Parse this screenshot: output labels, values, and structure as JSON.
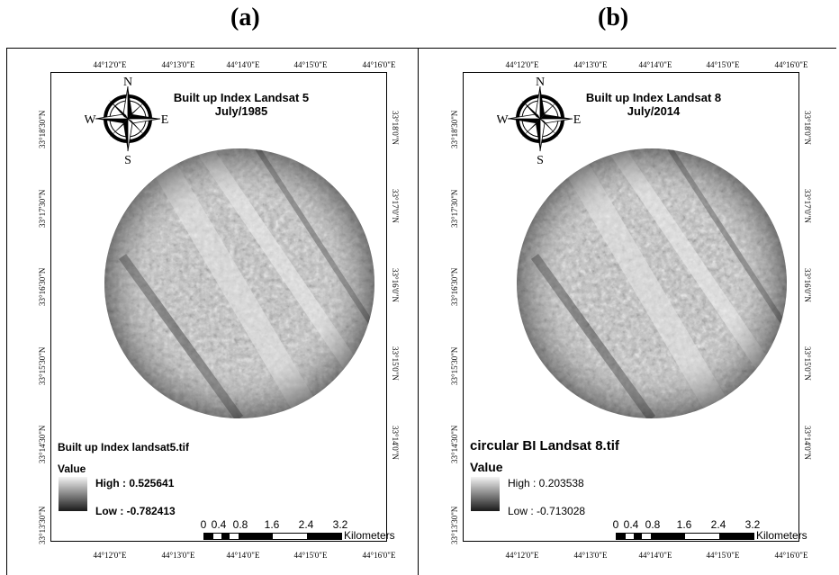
{
  "panels": [
    {
      "label": "(a)",
      "title_line1": "Built up Index Landsat 5",
      "title_line2": "July/1985",
      "legend_title": "Built up Index landsat5.tif",
      "legend_value_label": "Value",
      "legend_high": "High : 0.525641",
      "legend_low": "Low : -0.782413",
      "scale_labels": [
        "0",
        "0.4",
        "0.8",
        "1.6",
        "2.4",
        "3.2"
      ],
      "scale_unit": "Kilometers",
      "lon_ticks": [
        "44°12'0\"E",
        "44°13'0\"E",
        "44°14'0\"E",
        "44°15'0\"E",
        "44°16'0\"E"
      ],
      "lat_ticks_left": [
        "33°18'30\"N",
        "33°17'30\"N",
        "33°16'30\"N",
        "33°15'30\"N",
        "33°14'30\"N",
        "33°13'30\"N"
      ],
      "lat_ticks_right": [
        "33°18'0\"N",
        "33°17'0\"N",
        "33°16'0\"N",
        "33°15'0\"N",
        "33°14'0\"N"
      ]
    },
    {
      "label": "(b)",
      "title_line1": "Built up Index Landsat 8",
      "title_line2": "July/2014",
      "legend_title": "circular BI Landsat 8.tif",
      "legend_value_label": "Value",
      "legend_high": "High : 0.203538",
      "legend_low": "Low : -0.713028",
      "scale_labels": [
        "0",
        "0.4",
        "0.8",
        "1.6",
        "2.4",
        "3.2"
      ],
      "scale_unit": "Kilometers",
      "lon_ticks": [
        "44°12'0\"E",
        "44°13'0\"E",
        "44°14'0\"E",
        "44°15'0\"E",
        "44°16'0\"E"
      ],
      "lat_ticks_left": [
        "33°18'30\"N",
        "33°17'30\"N",
        "33°16'30\"N",
        "33°15'30\"N",
        "33°14'30\"N",
        "33°13'30\"N"
      ],
      "lat_ticks_right": [
        "33°18'0\"N",
        "33°17'0\"N",
        "33°16'0\"N",
        "33°15'0\"N",
        "33°14'0\"N"
      ]
    }
  ],
  "compass": {
    "n": "N",
    "s": "S",
    "e": "E",
    "w": "W",
    "icon": "compass-rose-icon"
  }
}
